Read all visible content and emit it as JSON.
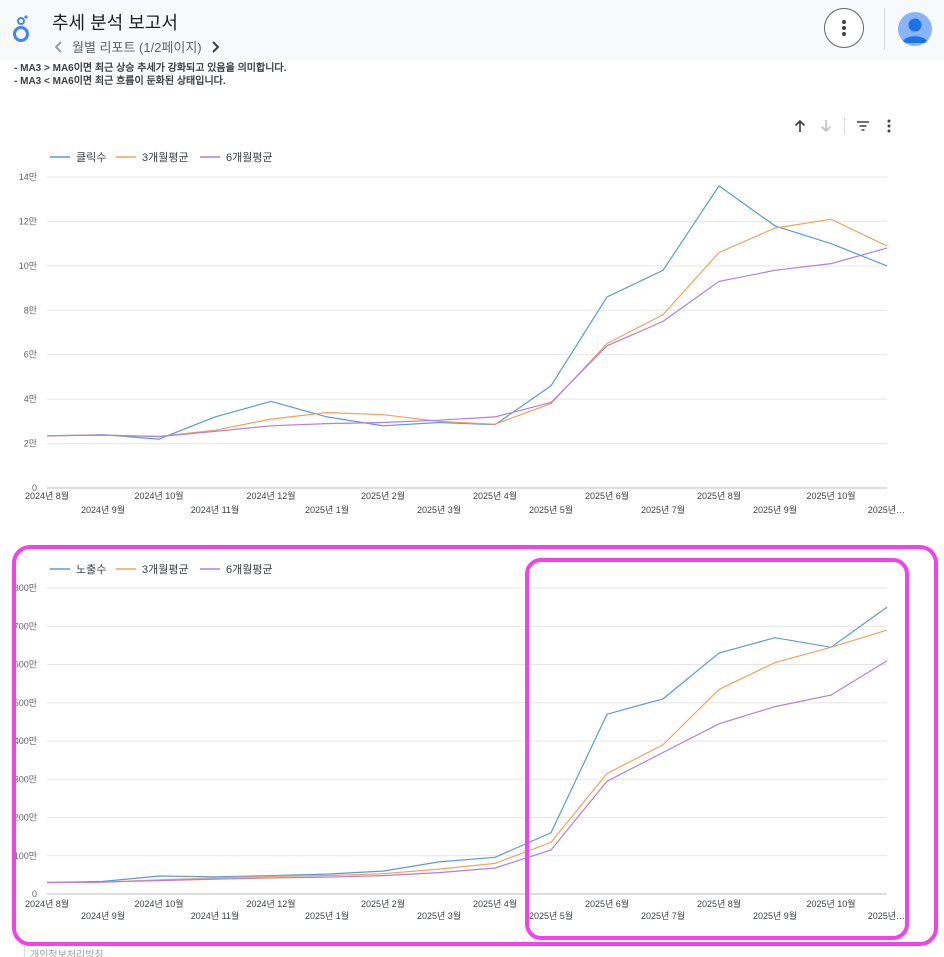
{
  "header": {
    "title": "추세 분석 보고서",
    "page_nav": "월별 리포트 (1/2페이지)"
  },
  "notes": [
    "- MA3 > MA6이면 최근 상승 추세가 강화되고 있음을 의미합니다.",
    "- MA3 < MA6이면 최근 흐름이 둔화된 상태입니다."
  ],
  "icons": {
    "logo": "looker-studio-logo-icon",
    "prev": "chevron-left-icon",
    "next": "chevron-right-icon",
    "more": "more-vert-icon",
    "avatar": "account-avatar-icon",
    "sort_asc": "arrow-up-icon",
    "sort_desc": "arrow-down-icon",
    "filter": "filter-icon",
    "chart_menu": "more-vert-icon"
  },
  "colors": {
    "series_1": "#5b9bd5",
    "series_2": "#f0a35e",
    "series_3": "#b07fe0",
    "highlight": "#f044e8"
  },
  "footer": {
    "link": "개인정보처리방침"
  },
  "chart_data": [
    {
      "type": "line",
      "x": [
        "2024년 8월",
        "2024년 9월",
        "2024년 10월",
        "2024년 11월",
        "2024년 12월",
        "2025년 1월",
        "2025년 2월",
        "2025년 3월",
        "2025년 4월",
        "2025년 5월",
        "2025년 6월",
        "2025년 7월",
        "2025년 8월",
        "2025년 9월",
        "2025년 10월",
        "2025년…"
      ],
      "y_ticks": [
        "0",
        "2만",
        "4만",
        "6만",
        "8만",
        "10만",
        "12만",
        "14만"
      ],
      "ylim": [
        0,
        140000
      ],
      "legend_position": "top-left",
      "grid": true,
      "series": [
        {
          "name": "클릭수",
          "values": [
            23500,
            24000,
            22000,
            32000,
            39000,
            32000,
            28000,
            29500,
            28500,
            46000,
            86000,
            98000,
            136000,
            118000,
            110000,
            100000
          ]
        },
        {
          "name": "3개월평균",
          "values": [
            23500,
            23800,
            23200,
            26000,
            31000,
            34000,
            33000,
            30000,
            28700,
            38000,
            65000,
            78000,
            106000,
            117000,
            121000,
            109000
          ]
        },
        {
          "name": "6개월평균",
          "values": [
            23500,
            23800,
            23200,
            25500,
            28000,
            29000,
            29500,
            30500,
            32000,
            38500,
            64000,
            75000,
            93000,
            98000,
            101000,
            108000
          ]
        }
      ]
    },
    {
      "type": "line",
      "x": [
        "2024년 8월",
        "2024년 9월",
        "2024년 10월",
        "2024년 11월",
        "2024년 12월",
        "2025년 1월",
        "2025년 2월",
        "2025년 3월",
        "2025년 4월",
        "2025년 5월",
        "2025년 6월",
        "2025년 7월",
        "2025년 8월",
        "2025년 9월",
        "2025년 10월",
        "2025년…"
      ],
      "y_ticks": [
        "0",
        "100만",
        "200만",
        "300만",
        "400만",
        "500만",
        "600만",
        "700만",
        "800만"
      ],
      "ylim": [
        0,
        8000000
      ],
      "legend_position": "top-left",
      "grid": true,
      "series": [
        {
          "name": "노출수",
          "values": [
            300000,
            330000,
            470000,
            450000,
            480000,
            520000,
            600000,
            840000,
            960000,
            1600000,
            4700000,
            5100000,
            6300000,
            6700000,
            6450000,
            7500000
          ]
        },
        {
          "name": "3개월평균",
          "values": [
            300000,
            310000,
            370000,
            420000,
            460000,
            480000,
            530000,
            650000,
            800000,
            1350000,
            3150000,
            3900000,
            5350000,
            6050000,
            6450000,
            6900000
          ]
        },
        {
          "name": "6개월평균",
          "values": [
            300000,
            310000,
            350000,
            390000,
            420000,
            440000,
            480000,
            560000,
            680000,
            1150000,
            2950000,
            3700000,
            4450000,
            4900000,
            5200000,
            6100000
          ]
        }
      ]
    }
  ]
}
